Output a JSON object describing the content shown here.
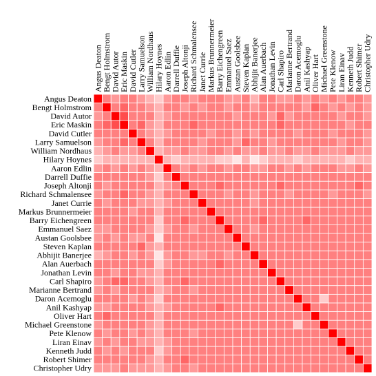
{
  "chart_data": {
    "type": "heatmap",
    "color": "#ff0000",
    "categories": [
      "Angus Deaton",
      "Bengt Holmstrom",
      "David Autor",
      "Eric Maskin",
      "David Cutler",
      "Larry Samuelson",
      "William Nordhaus",
      "Hilary Hoynes",
      "Aaron Edlin",
      "Darrell Duffie",
      "Joseph Altonji",
      "Richard Schmalensee",
      "Janet Currie",
      "Markus Brunnermeier",
      "Barry Eichengreen",
      "Emmanuel Saez",
      "Austan Goolsbee",
      "Steven Kaplan",
      "Abhijit Banerjee",
      "Alan Auerbach",
      "Jonathan Levin",
      "Carl Shapiro",
      "Marianne Bertrand",
      "Daron Acemoglu",
      "Anil Kashyap",
      "Oliver Hart",
      "Michael Greenstone",
      "Pete Klenow",
      "Liran Einav",
      "Kenneth Judd",
      "Robert Shimer",
      "Christopher Udry"
    ],
    "zlim": [
      0,
      1
    ],
    "values": [
      [
        1,
        0.5,
        0.4,
        0.5,
        0.5,
        0.4,
        0.3,
        0.2,
        0.4,
        0.5,
        0.5,
        0.4,
        0.5,
        0.5,
        0.5,
        0.4,
        0.4,
        0.5,
        0.3,
        0.5,
        0.5,
        0.4,
        0.4,
        0.5,
        0.4,
        0.5,
        0.4,
        0.5,
        0.4,
        0.5,
        0.5,
        0.4
      ],
      [
        0.5,
        1,
        0.5,
        0.6,
        0.5,
        0.5,
        0.4,
        0.3,
        0.5,
        0.5,
        0.4,
        0.5,
        0.4,
        0.5,
        0.5,
        0.4,
        0.5,
        0.5,
        0.4,
        0.5,
        0.5,
        0.5,
        0.5,
        0.5,
        0.4,
        0.6,
        0.5,
        0.4,
        0.5,
        0.4,
        0.5,
        0.4
      ],
      [
        0.4,
        0.5,
        1,
        0.7,
        0.5,
        0.5,
        0.5,
        0.3,
        0.4,
        0.5,
        0.5,
        0.5,
        0.5,
        0.5,
        0.5,
        0.5,
        0.4,
        0.5,
        0.5,
        0.5,
        0.4,
        0.6,
        0.4,
        0.5,
        0.5,
        0.5,
        0.5,
        0.5,
        0.4,
        0.5,
        0.5,
        0.4
      ],
      [
        0.5,
        0.6,
        0.7,
        1,
        0.5,
        0.6,
        0.4,
        0.3,
        0.5,
        0.5,
        0.5,
        0.6,
        0.5,
        0.5,
        0.5,
        0.5,
        0.5,
        0.5,
        0.5,
        0.5,
        0.5,
        0.6,
        0.5,
        0.5,
        0.5,
        0.5,
        0.5,
        0.5,
        0.5,
        0.4,
        0.5,
        0.5
      ],
      [
        0.5,
        0.5,
        0.5,
        0.5,
        1,
        0.5,
        0.4,
        0.3,
        0.4,
        0.5,
        0.5,
        0.5,
        0.5,
        0.4,
        0.5,
        0.5,
        0.4,
        0.5,
        0.4,
        0.5,
        0.5,
        0.5,
        0.5,
        0.4,
        0.5,
        0.5,
        0.5,
        0.4,
        0.5,
        0.5,
        0.5,
        0.4
      ],
      [
        0.4,
        0.5,
        0.5,
        0.6,
        0.5,
        1,
        0.5,
        0.3,
        0.5,
        0.5,
        0.5,
        0.5,
        0.4,
        0.5,
        0.5,
        0.5,
        0.4,
        0.6,
        0.5,
        0.5,
        0.4,
        0.5,
        0.5,
        0.5,
        0.5,
        0.5,
        0.5,
        0.5,
        0.4,
        0.5,
        0.5,
        0.4
      ],
      [
        0.3,
        0.4,
        0.5,
        0.4,
        0.4,
        0.5,
        1,
        0.3,
        0.4,
        0.4,
        0.5,
        0.4,
        0.4,
        0.5,
        0.5,
        0.4,
        0.5,
        0.4,
        0.4,
        0.5,
        0.4,
        0.4,
        0.5,
        0.4,
        0.4,
        0.5,
        0.4,
        0.4,
        0.4,
        0.5,
        0.4,
        0.4
      ],
      [
        0.2,
        0.3,
        0.3,
        0.3,
        0.3,
        0.3,
        0.3,
        1,
        0.3,
        0.2,
        0.3,
        0.3,
        0.3,
        0.3,
        0.2,
        0.2,
        0.1,
        0.3,
        0.1,
        0.2,
        0.3,
        0.3,
        0.3,
        0.2,
        0.3,
        0.3,
        0.3,
        0.3,
        0.3,
        0.2,
        0.3,
        0.3
      ],
      [
        0.4,
        0.5,
        0.4,
        0.5,
        0.4,
        0.5,
        0.4,
        0.3,
        1,
        0.5,
        0.4,
        0.5,
        0.4,
        0.5,
        0.5,
        0.4,
        0.5,
        0.5,
        0.4,
        0.4,
        0.5,
        0.5,
        0.4,
        0.5,
        0.4,
        0.5,
        0.5,
        0.5,
        0.4,
        0.4,
        0.5,
        0.4
      ],
      [
        0.5,
        0.5,
        0.5,
        0.5,
        0.5,
        0.5,
        0.4,
        0.2,
        0.5,
        1,
        0.5,
        0.5,
        0.5,
        0.5,
        0.5,
        0.5,
        0.5,
        0.5,
        0.5,
        0.5,
        0.5,
        0.5,
        0.5,
        0.5,
        0.5,
        0.5,
        0.5,
        0.5,
        0.5,
        0.5,
        0.5,
        0.5
      ],
      [
        0.5,
        0.4,
        0.5,
        0.5,
        0.5,
        0.5,
        0.5,
        0.3,
        0.4,
        0.5,
        1,
        0.5,
        0.5,
        0.5,
        0.6,
        0.5,
        0.5,
        0.5,
        0.5,
        0.5,
        0.5,
        0.6,
        0.5,
        0.5,
        0.5,
        0.5,
        0.5,
        0.5,
        0.5,
        0.5,
        0.6,
        0.5
      ],
      [
        0.4,
        0.5,
        0.5,
        0.6,
        0.5,
        0.5,
        0.4,
        0.3,
        0.5,
        0.5,
        0.5,
        1,
        0.5,
        0.5,
        0.5,
        0.4,
        0.5,
        0.5,
        0.4,
        0.5,
        0.5,
        0.5,
        0.4,
        0.5,
        0.5,
        0.5,
        0.5,
        0.4,
        0.5,
        0.5,
        0.5,
        0.4
      ],
      [
        0.5,
        0.4,
        0.5,
        0.5,
        0.5,
        0.4,
        0.4,
        0.3,
        0.4,
        0.5,
        0.5,
        0.5,
        1,
        0.5,
        0.5,
        0.5,
        0.5,
        0.5,
        0.4,
        0.5,
        0.5,
        0.5,
        0.5,
        0.5,
        0.5,
        0.5,
        0.5,
        0.5,
        0.5,
        0.5,
        0.5,
        0.5
      ],
      [
        0.5,
        0.5,
        0.5,
        0.5,
        0.4,
        0.5,
        0.5,
        0.3,
        0.5,
        0.5,
        0.5,
        0.5,
        0.5,
        1,
        0.5,
        0.5,
        0.5,
        0.5,
        0.5,
        0.5,
        0.5,
        0.5,
        0.5,
        0.5,
        0.5,
        0.5,
        0.5,
        0.5,
        0.5,
        0.5,
        0.5,
        0.5
      ],
      [
        0.5,
        0.5,
        0.5,
        0.5,
        0.5,
        0.5,
        0.5,
        0.2,
        0.5,
        0.5,
        0.6,
        0.5,
        0.5,
        0.5,
        1,
        0.5,
        0.5,
        0.5,
        0.5,
        0.6,
        0.5,
        0.5,
        0.5,
        0.5,
        0.6,
        0.5,
        0.5,
        0.5,
        0.5,
        0.5,
        0.5,
        0.5
      ],
      [
        0.4,
        0.4,
        0.5,
        0.5,
        0.5,
        0.5,
        0.4,
        0.2,
        0.4,
        0.5,
        0.5,
        0.4,
        0.5,
        0.5,
        0.5,
        1,
        0.5,
        0.5,
        0.4,
        0.5,
        0.5,
        0.5,
        0.5,
        0.5,
        0.5,
        0.5,
        0.5,
        0.5,
        0.5,
        0.5,
        0.5,
        0.5
      ],
      [
        0.4,
        0.5,
        0.4,
        0.5,
        0.4,
        0.4,
        0.5,
        0.1,
        0.5,
        0.5,
        0.5,
        0.5,
        0.5,
        0.5,
        0.5,
        0.5,
        1,
        0.5,
        0.5,
        0.5,
        0.5,
        0.5,
        0.5,
        0.5,
        0.5,
        0.5,
        0.5,
        0.5,
        0.5,
        0.5,
        0.5,
        0.5
      ],
      [
        0.5,
        0.5,
        0.5,
        0.5,
        0.5,
        0.6,
        0.4,
        0.3,
        0.5,
        0.5,
        0.5,
        0.5,
        0.5,
        0.5,
        0.5,
        0.5,
        0.5,
        1,
        0.5,
        0.5,
        0.5,
        0.5,
        0.5,
        0.5,
        0.5,
        0.5,
        0.5,
        0.5,
        0.5,
        0.5,
        0.5,
        0.5
      ],
      [
        0.3,
        0.4,
        0.5,
        0.5,
        0.4,
        0.5,
        0.4,
        0.1,
        0.4,
        0.5,
        0.5,
        0.4,
        0.4,
        0.5,
        0.5,
        0.4,
        0.5,
        0.5,
        1,
        0.5,
        0.5,
        0.5,
        0.5,
        0.5,
        0.5,
        0.5,
        0.5,
        0.5,
        0.5,
        0.5,
        0.5,
        0.5
      ],
      [
        0.5,
        0.5,
        0.5,
        0.5,
        0.5,
        0.5,
        0.5,
        0.2,
        0.4,
        0.5,
        0.5,
        0.5,
        0.5,
        0.5,
        0.6,
        0.5,
        0.5,
        0.5,
        0.5,
        1,
        0.5,
        0.5,
        0.5,
        0.5,
        0.5,
        0.5,
        0.5,
        0.5,
        0.5,
        0.5,
        0.5,
        0.5
      ],
      [
        0.5,
        0.5,
        0.4,
        0.5,
        0.5,
        0.4,
        0.4,
        0.3,
        0.5,
        0.5,
        0.5,
        0.5,
        0.5,
        0.5,
        0.5,
        0.5,
        0.5,
        0.5,
        0.5,
        0.5,
        1,
        0.5,
        0.5,
        0.5,
        0.5,
        0.5,
        0.5,
        0.5,
        0.5,
        0.5,
        0.5,
        0.5
      ],
      [
        0.4,
        0.5,
        0.6,
        0.6,
        0.5,
        0.5,
        0.4,
        0.3,
        0.5,
        0.5,
        0.6,
        0.5,
        0.5,
        0.5,
        0.5,
        0.5,
        0.5,
        0.5,
        0.5,
        0.5,
        0.5,
        1,
        0.5,
        0.5,
        0.5,
        0.5,
        0.5,
        0.5,
        0.5,
        0.5,
        0.5,
        0.5
      ],
      [
        0.4,
        0.5,
        0.4,
        0.5,
        0.5,
        0.5,
        0.5,
        0.3,
        0.4,
        0.5,
        0.5,
        0.4,
        0.5,
        0.5,
        0.5,
        0.5,
        0.5,
        0.5,
        0.5,
        0.5,
        0.5,
        0.5,
        1,
        0.5,
        0.5,
        0.5,
        0.5,
        0.5,
        0.5,
        0.5,
        0.5,
        0.5
      ],
      [
        0.5,
        0.5,
        0.5,
        0.5,
        0.4,
        0.5,
        0.4,
        0.2,
        0.5,
        0.5,
        0.5,
        0.5,
        0.5,
        0.5,
        0.5,
        0.5,
        0.5,
        0.5,
        0.5,
        0.5,
        0.5,
        0.5,
        0.5,
        1,
        0.5,
        0.5,
        0.2,
        0.5,
        0.5,
        0.5,
        0.5,
        0.5
      ],
      [
        0.4,
        0.4,
        0.5,
        0.5,
        0.5,
        0.5,
        0.4,
        0.3,
        0.4,
        0.5,
        0.5,
        0.5,
        0.5,
        0.5,
        0.6,
        0.5,
        0.5,
        0.5,
        0.5,
        0.5,
        0.5,
        0.5,
        0.5,
        0.5,
        1,
        0.5,
        0.5,
        0.5,
        0.5,
        0.5,
        0.5,
        0.5
      ],
      [
        0.5,
        0.6,
        0.5,
        0.5,
        0.5,
        0.5,
        0.5,
        0.3,
        0.5,
        0.5,
        0.5,
        0.5,
        0.5,
        0.5,
        0.5,
        0.5,
        0.5,
        0.5,
        0.5,
        0.5,
        0.5,
        0.5,
        0.5,
        0.5,
        0.5,
        1,
        0.5,
        0.5,
        0.5,
        0.5,
        0.5,
        0.5
      ],
      [
        0.4,
        0.5,
        0.5,
        0.5,
        0.5,
        0.5,
        0.4,
        0.3,
        0.5,
        0.5,
        0.5,
        0.5,
        0.5,
        0.5,
        0.5,
        0.5,
        0.5,
        0.5,
        0.5,
        0.5,
        0.5,
        0.5,
        0.5,
        0.2,
        0.5,
        0.5,
        1,
        0.5,
        0.5,
        0.5,
        0.5,
        0.5
      ],
      [
        0.5,
        0.4,
        0.5,
        0.5,
        0.4,
        0.5,
        0.4,
        0.3,
        0.5,
        0.5,
        0.5,
        0.4,
        0.5,
        0.5,
        0.5,
        0.5,
        0.5,
        0.5,
        0.5,
        0.5,
        0.5,
        0.5,
        0.5,
        0.5,
        0.5,
        0.5,
        0.5,
        1,
        0.5,
        0.5,
        0.5,
        0.5
      ],
      [
        0.4,
        0.5,
        0.4,
        0.5,
        0.5,
        0.4,
        0.4,
        0.3,
        0.4,
        0.5,
        0.5,
        0.5,
        0.5,
        0.5,
        0.5,
        0.5,
        0.5,
        0.5,
        0.5,
        0.5,
        0.5,
        0.5,
        0.5,
        0.5,
        0.5,
        0.5,
        0.5,
        0.5,
        1,
        0.5,
        0.5,
        0.5
      ],
      [
        0.5,
        0.4,
        0.5,
        0.4,
        0.5,
        0.5,
        0.5,
        0.2,
        0.4,
        0.5,
        0.5,
        0.5,
        0.5,
        0.5,
        0.5,
        0.5,
        0.5,
        0.5,
        0.5,
        0.5,
        0.5,
        0.5,
        0.5,
        0.5,
        0.5,
        0.5,
        0.5,
        0.5,
        0.5,
        1,
        0.5,
        0.5
      ],
      [
        0.5,
        0.5,
        0.5,
        0.5,
        0.5,
        0.5,
        0.4,
        0.3,
        0.5,
        0.5,
        0.6,
        0.5,
        0.5,
        0.5,
        0.5,
        0.5,
        0.5,
        0.5,
        0.5,
        0.5,
        0.5,
        0.5,
        0.5,
        0.5,
        0.5,
        0.5,
        0.5,
        0.5,
        0.5,
        0.5,
        1,
        0.5
      ],
      [
        0.4,
        0.4,
        0.4,
        0.5,
        0.4,
        0.4,
        0.4,
        0.3,
        0.4,
        0.5,
        0.5,
        0.4,
        0.5,
        0.5,
        0.5,
        0.5,
        0.5,
        0.5,
        0.5,
        0.5,
        0.5,
        0.5,
        0.5,
        0.5,
        0.5,
        0.5,
        0.5,
        0.5,
        0.5,
        0.5,
        0.5,
        1
      ]
    ]
  }
}
